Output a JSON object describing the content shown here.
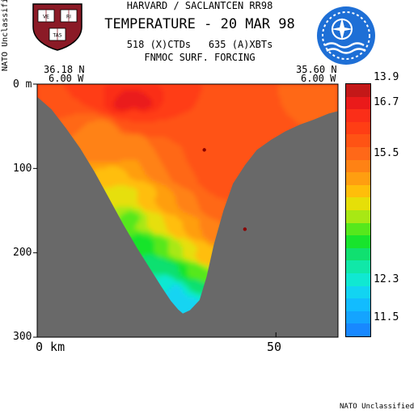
{
  "header": {
    "institution": "HARVARD / SACLANTCEN RR98",
    "title": "TEMPERATURE - 20 MAR 98",
    "counts": "518 (X)CTDs   635 (A)XBTs",
    "forcing": "FNMOC SURF. FORCING"
  },
  "classification": {
    "side": "NATO Unclassified",
    "bottom": "NATO Unclassified"
  },
  "logos": {
    "harvard_shield": "harvard-shield-icon",
    "harvard_letters": [
      "VE",
      "RI",
      "TAS"
    ],
    "saclantcen": "saclantcen-emblem-icon"
  },
  "colors": {
    "background": "#ffffff",
    "land": "#696969",
    "border": "#000000"
  },
  "chart_data": {
    "type": "heatmap",
    "section": {
      "start": {
        "lat": "36.18 N",
        "lon": "6.00 W"
      },
      "end": {
        "lat": "35.60 N",
        "lon": "6.00 W"
      }
    },
    "x_axis": {
      "label": "km",
      "range": [
        0,
        63
      ],
      "ticks": [
        {
          "value": 0,
          "label": "0 km"
        },
        {
          "value": 50,
          "label": "50"
        }
      ]
    },
    "y_axis": {
      "range": [
        0,
        300
      ],
      "inverted": true,
      "ticks": [
        {
          "value": 0,
          "label": "0 m"
        },
        {
          "value": 100,
          "label": "100"
        },
        {
          "value": 200,
          "label": "200"
        },
        {
          "value": 300,
          "label": "300"
        }
      ]
    },
    "bathymetry_depth_m": [
      [
        0,
        15
      ],
      [
        3,
        30
      ],
      [
        6,
        52
      ],
      [
        9,
        76
      ],
      [
        12,
        104
      ],
      [
        15,
        135
      ],
      [
        18,
        166
      ],
      [
        21,
        195
      ],
      [
        24,
        222
      ],
      [
        26,
        240
      ],
      [
        28,
        257
      ],
      [
        29.5,
        267
      ],
      [
        30.5,
        272
      ],
      [
        32,
        268
      ],
      [
        34,
        256
      ],
      [
        35.5,
        228
      ],
      [
        37,
        190
      ],
      [
        39,
        150
      ],
      [
        41,
        118
      ],
      [
        43.5,
        96
      ],
      [
        46,
        78
      ],
      [
        49,
        66
      ],
      [
        52,
        56
      ],
      [
        55,
        48
      ],
      [
        58,
        42
      ],
      [
        61,
        35
      ],
      [
        63,
        32
      ]
    ],
    "temperature_field": [
      {
        "x": 1,
        "z": 5,
        "v": 16.1
      },
      {
        "x": 5,
        "z": 10,
        "v": 16.1
      },
      {
        "x": 9,
        "z": 18,
        "v": 16.1
      },
      {
        "x": 14,
        "z": 15,
        "v": 16.4
      },
      {
        "x": 18,
        "z": 22,
        "v": 16.8
      },
      {
        "x": 22,
        "z": 20,
        "v": 16.8
      },
      {
        "x": 25,
        "z": 10,
        "v": 16.5
      },
      {
        "x": 28,
        "z": 8,
        "v": 16.1
      },
      {
        "x": 34,
        "z": 12,
        "v": 16.1
      },
      {
        "x": 40,
        "z": 8,
        "v": 16.1
      },
      {
        "x": 46,
        "z": 8,
        "v": 15.8
      },
      {
        "x": 53,
        "z": 8,
        "v": 15.8
      },
      {
        "x": 60,
        "z": 10,
        "v": 15.5
      },
      {
        "x": 61.5,
        "z": 25,
        "v": 15.8
      },
      {
        "x": 10,
        "z": 50,
        "v": 15.5
      },
      {
        "x": 14,
        "z": 58,
        "v": 15.2
      },
      {
        "x": 20,
        "z": 45,
        "v": 16.1
      },
      {
        "x": 24,
        "z": 50,
        "v": 16.1
      },
      {
        "x": 30,
        "z": 48,
        "v": 16.1
      },
      {
        "x": 38,
        "z": 45,
        "v": 16.1
      },
      {
        "x": 44,
        "z": 42,
        "v": 15.8
      },
      {
        "x": 50,
        "z": 45,
        "v": 15.8
      },
      {
        "x": 54,
        "z": 40,
        "v": 15.8
      },
      {
        "x": 16,
        "z": 80,
        "v": 15.5
      },
      {
        "x": 20,
        "z": 70,
        "v": 15.2
      },
      {
        "x": 24,
        "z": 75,
        "v": 15.5
      },
      {
        "x": 30,
        "z": 80,
        "v": 15.8
      },
      {
        "x": 36,
        "z": 85,
        "v": 16.1
      },
      {
        "x": 42,
        "z": 80,
        "v": 16.1
      },
      {
        "x": 46,
        "z": 78,
        "v": 16.1
      },
      {
        "x": 16.5,
        "z": 112,
        "v": 14.6
      },
      {
        "x": 18,
        "z": 105,
        "v": 14.9
      },
      {
        "x": 21,
        "z": 100,
        "v": 15.2
      },
      {
        "x": 26,
        "z": 100,
        "v": 15.5
      },
      {
        "x": 32,
        "z": 105,
        "v": 15.8
      },
      {
        "x": 38,
        "z": 115,
        "v": 16.1
      },
      {
        "x": 42,
        "z": 110,
        "v": 16.1
      },
      {
        "x": 18,
        "z": 135,
        "v": 14.3
      },
      {
        "x": 21,
        "z": 130,
        "v": 14.6
      },
      {
        "x": 24,
        "z": 140,
        "v": 14.9
      },
      {
        "x": 28,
        "z": 140,
        "v": 15.2
      },
      {
        "x": 33,
        "z": 140,
        "v": 15.5
      },
      {
        "x": 38,
        "z": 145,
        "v": 15.8
      },
      {
        "x": 40,
        "z": 140,
        "v": 15.8
      },
      {
        "x": 20,
        "z": 160,
        "v": 13.9
      },
      {
        "x": 23,
        "z": 162,
        "v": 14.3
      },
      {
        "x": 26,
        "z": 168,
        "v": 14.6
      },
      {
        "x": 30,
        "z": 170,
        "v": 14.9
      },
      {
        "x": 34,
        "z": 172,
        "v": 15.2
      },
      {
        "x": 37.5,
        "z": 175,
        "v": 15.5
      },
      {
        "x": 22,
        "z": 190,
        "v": 13.3
      },
      {
        "x": 24.5,
        "z": 190,
        "v": 13.6
      },
      {
        "x": 27,
        "z": 195,
        "v": 14.0
      },
      {
        "x": 30,
        "z": 198,
        "v": 14.3
      },
      {
        "x": 33,
        "z": 200,
        "v": 14.6
      },
      {
        "x": 35.5,
        "z": 205,
        "v": 14.9
      },
      {
        "x": 24.5,
        "z": 215,
        "v": 12.9
      },
      {
        "x": 27,
        "z": 220,
        "v": 13.0
      },
      {
        "x": 30,
        "z": 222,
        "v": 13.3
      },
      {
        "x": 32.5,
        "z": 222,
        "v": 13.7
      },
      {
        "x": 34.5,
        "z": 225,
        "v": 14.0
      },
      {
        "x": 27,
        "z": 235,
        "v": 12.4
      },
      {
        "x": 29,
        "z": 245,
        "v": 12.2
      },
      {
        "x": 31,
        "z": 250,
        "v": 12.3
      },
      {
        "x": 33,
        "z": 240,
        "v": 13.0
      },
      {
        "x": 30,
        "z": 262,
        "v": 12.0
      },
      {
        "x": 31.5,
        "z": 262,
        "v": 12.1
      }
    ],
    "observation_marks": [
      {
        "x": 35,
        "z": 78
      },
      {
        "x": 43.5,
        "z": 172
      }
    ],
    "colorbar": {
      "levels": [
        17.0,
        16.7,
        16.4,
        16.1,
        15.8,
        15.5,
        15.2,
        14.9,
        14.6,
        14.3,
        14.0,
        13.6,
        13.3,
        12.9,
        12.6,
        12.3,
        12.0,
        11.7,
        11.5,
        11.2
      ],
      "colors": [
        "#c41818",
        "#ea1a1a",
        "#fb2e18",
        "#ff3e14",
        "#ff5314",
        "#ff6818",
        "#ff8214",
        "#ff9e10",
        "#ffbe0a",
        "#e6df08",
        "#a8e814",
        "#56e81c",
        "#18e42c",
        "#10e070",
        "#10e8a8",
        "#10e8d2",
        "#12d4f2",
        "#12bcff",
        "#14a4ff",
        "#1888ff"
      ],
      "labels": [
        {
          "value": 16.7,
          "text": "16.7"
        },
        {
          "value": 15.5,
          "text": "15.5"
        },
        {
          "value": 13.9,
          "text": "13.9"
        },
        {
          "value": 12.3,
          "text": "12.3"
        },
        {
          "value": 11.5,
          "text": "11.5"
        }
      ]
    }
  }
}
